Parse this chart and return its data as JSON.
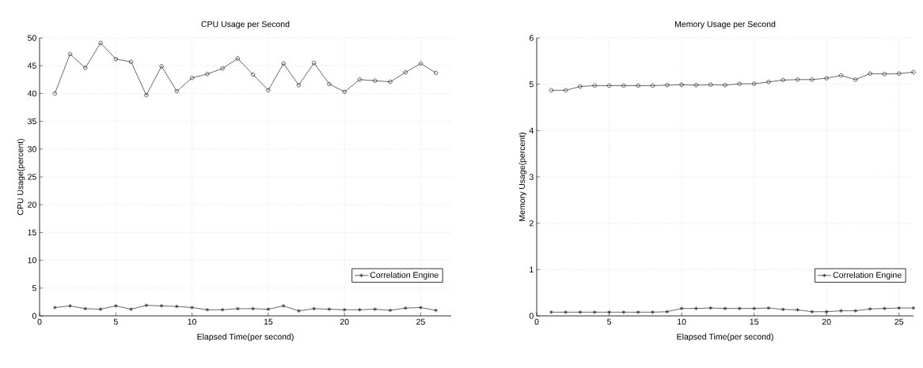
{
  "chart_data": [
    {
      "type": "line",
      "title": "CPU Usage per Second",
      "xlabel": "Elapsed Time(per second)",
      "ylabel": "CPU Usage(percent)",
      "x": [
        1,
        2,
        3,
        4,
        5,
        6,
        7,
        8,
        9,
        10,
        11,
        12,
        13,
        14,
        15,
        16,
        17,
        18,
        19,
        20,
        21,
        22,
        23,
        24,
        25,
        26
      ],
      "series": [
        {
          "name": "Correlation Engine",
          "color": "#000000",
          "marker": "cross",
          "values": [
            1.5,
            1.8,
            1.3,
            1.2,
            1.8,
            1.2,
            1.9,
            1.8,
            1.7,
            1.5,
            1.1,
            1.1,
            1.3,
            1.3,
            1.2,
            1.8,
            0.9,
            1.3,
            1.2,
            1.1,
            1.1,
            1.2,
            1.0,
            1.4,
            1.5,
            1.0
          ]
        },
        {
          "color": "#000000",
          "marker": "circle",
          "values": [
            40.0,
            47.1,
            44.6,
            49.1,
            46.2,
            45.7,
            39.7,
            44.9,
            40.4,
            42.8,
            43.5,
            44.5,
            46.3,
            43.4,
            40.6,
            45.4,
            41.5,
            45.5,
            41.7,
            40.3,
            42.5,
            42.3,
            42.1,
            43.8,
            45.4,
            43.7
          ]
        }
      ],
      "xlim": [
        0,
        27
      ],
      "xticks": [
        0,
        5,
        10,
        15,
        20,
        25
      ],
      "ylim": [
        0,
        50
      ],
      "yticks": [
        0,
        5,
        10,
        15,
        20,
        25,
        30,
        35,
        40,
        45,
        50
      ],
      "grid": true,
      "legend": "bottom right",
      "line_style": "solid"
    },
    {
      "type": "line",
      "title": "Memory Usage per Second",
      "xlabel": "Elapsed Time(per second)",
      "ylabel": "Memory Usage(percent)",
      "x": [
        1,
        2,
        3,
        4,
        5,
        6,
        7,
        8,
        9,
        10,
        11,
        12,
        13,
        14,
        15,
        16,
        17,
        18,
        19,
        20,
        21,
        22,
        23,
        24,
        25,
        26
      ],
      "series": [
        {
          "name": "Correlation Engine",
          "color": "#000000",
          "marker": "cross",
          "values": [
            0.08,
            0.08,
            0.08,
            0.08,
            0.08,
            0.08,
            0.08,
            0.08,
            0.09,
            0.16,
            0.16,
            0.17,
            0.16,
            0.16,
            0.16,
            0.17,
            0.14,
            0.13,
            0.09,
            0.09,
            0.11,
            0.11,
            0.15,
            0.16,
            0.17,
            0.17
          ]
        },
        {
          "color": "#000000",
          "marker": "circle",
          "values": [
            4.87,
            4.87,
            4.95,
            4.97,
            4.97,
            4.97,
            4.97,
            4.97,
            4.98,
            4.99,
            4.98,
            4.99,
            4.98,
            5.01,
            5.01,
            5.05,
            5.09,
            5.1,
            5.1,
            5.13,
            5.19,
            5.1,
            5.23,
            5.22,
            5.23,
            5.26
          ]
        }
      ],
      "xlim": [
        0,
        26
      ],
      "xticks": [
        0,
        5,
        10,
        15,
        20,
        25
      ],
      "ylim": [
        0,
        6
      ],
      "yticks": [
        0,
        1,
        2,
        3,
        4,
        5,
        6
      ],
      "grid": true,
      "legend": "bottom right",
      "line_style": "solid"
    }
  ]
}
